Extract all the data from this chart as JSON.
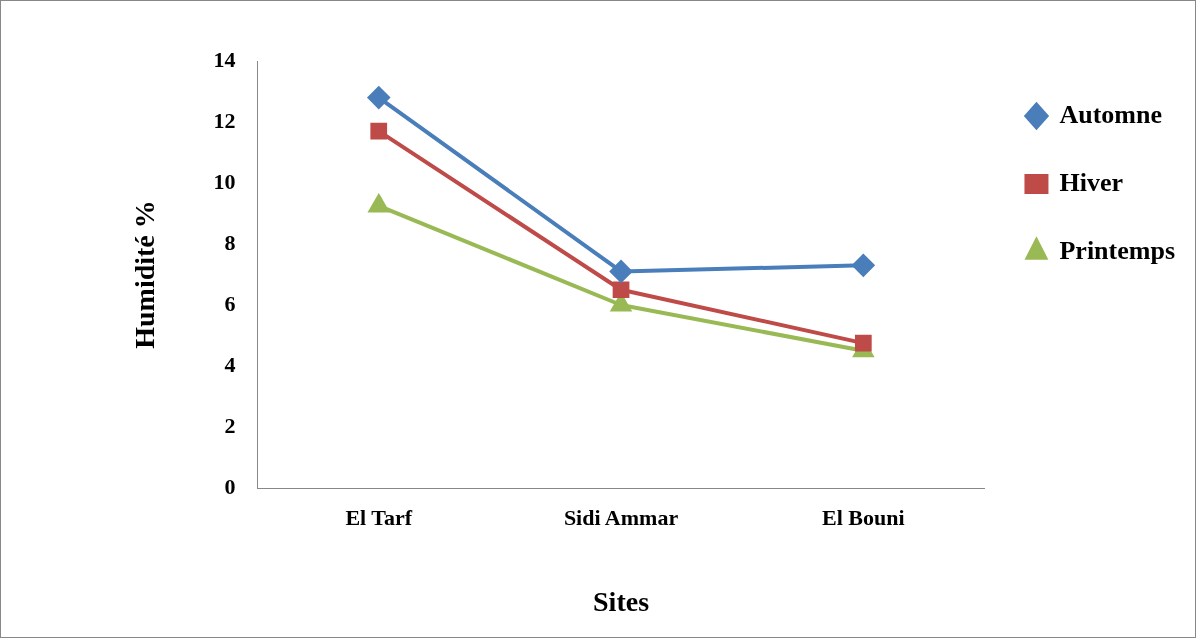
{
  "chart_data": {
    "type": "line",
    "xlabel": "Sites",
    "ylabel": "Humidité %",
    "categories": [
      "El Tarf",
      "Sidi Ammar",
      "El Bouni"
    ],
    "series": [
      {
        "name": "Automne",
        "color": "#4a7ebb",
        "values": [
          12.8,
          7.1,
          7.3
        ],
        "marker": "diamond"
      },
      {
        "name": "Hiver",
        "color": "#be4b48",
        "values": [
          11.7,
          6.5,
          4.75
        ],
        "marker": "square"
      },
      {
        "name": "Printemps",
        "color": "#98b954",
        "values": [
          9.25,
          6.0,
          4.5
        ],
        "marker": "triangle"
      }
    ],
    "ylim": [
      0,
      14
    ],
    "yticks": [
      0,
      2,
      4,
      6,
      8,
      10,
      12,
      14
    ],
    "grid": false,
    "legend": "top right",
    "line_style": "solid"
  }
}
